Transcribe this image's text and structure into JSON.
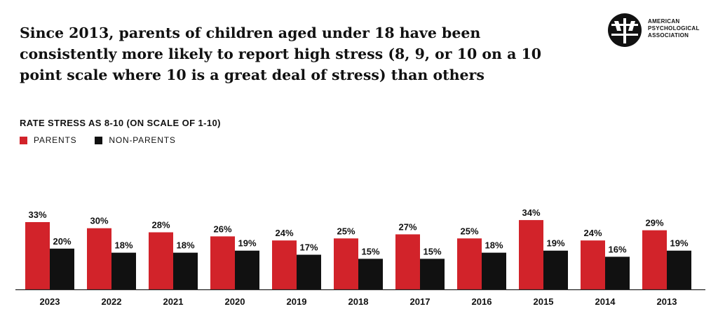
{
  "title": "Since 2013, parents of children aged under 18 have been consistently more likely to report high stress (8, 9, or 10 on a 10 point scale where 10 is a great deal of stress) than others",
  "logo": {
    "lines": [
      "AMERICAN",
      "PSYCHOLOGICAL",
      "ASSOCIATION"
    ]
  },
  "colors": {
    "parents": "#d2232a",
    "non_parents": "#111111"
  },
  "chart_data": {
    "type": "bar",
    "title": "RATE STRESS AS 8-10 (ON SCALE OF 1-10)",
    "categories": [
      "2023",
      "2022",
      "2021",
      "2020",
      "2019",
      "2018",
      "2017",
      "2016",
      "2015",
      "2014",
      "2013"
    ],
    "series": [
      {
        "name": "PARENTS",
        "values": [
          33,
          30,
          28,
          26,
          24,
          25,
          27,
          25,
          34,
          24,
          29
        ],
        "labels": [
          "33%",
          "30%",
          "28%",
          "26%",
          "24%",
          "25%",
          "27%",
          "25%",
          "34%",
          "24%",
          "29%"
        ]
      },
      {
        "name": "NON-PARENTS",
        "values": [
          20,
          18,
          18,
          19,
          17,
          15,
          15,
          18,
          19,
          16,
          19
        ],
        "labels": [
          "20%",
          "18%",
          "18%",
          "19%",
          "17%",
          "15%",
          "15%",
          "18%",
          "19%",
          "16%",
          "19%"
        ]
      }
    ],
    "ylim": [
      0,
      100
    ],
    "grid": false,
    "legend": "top-left"
  }
}
